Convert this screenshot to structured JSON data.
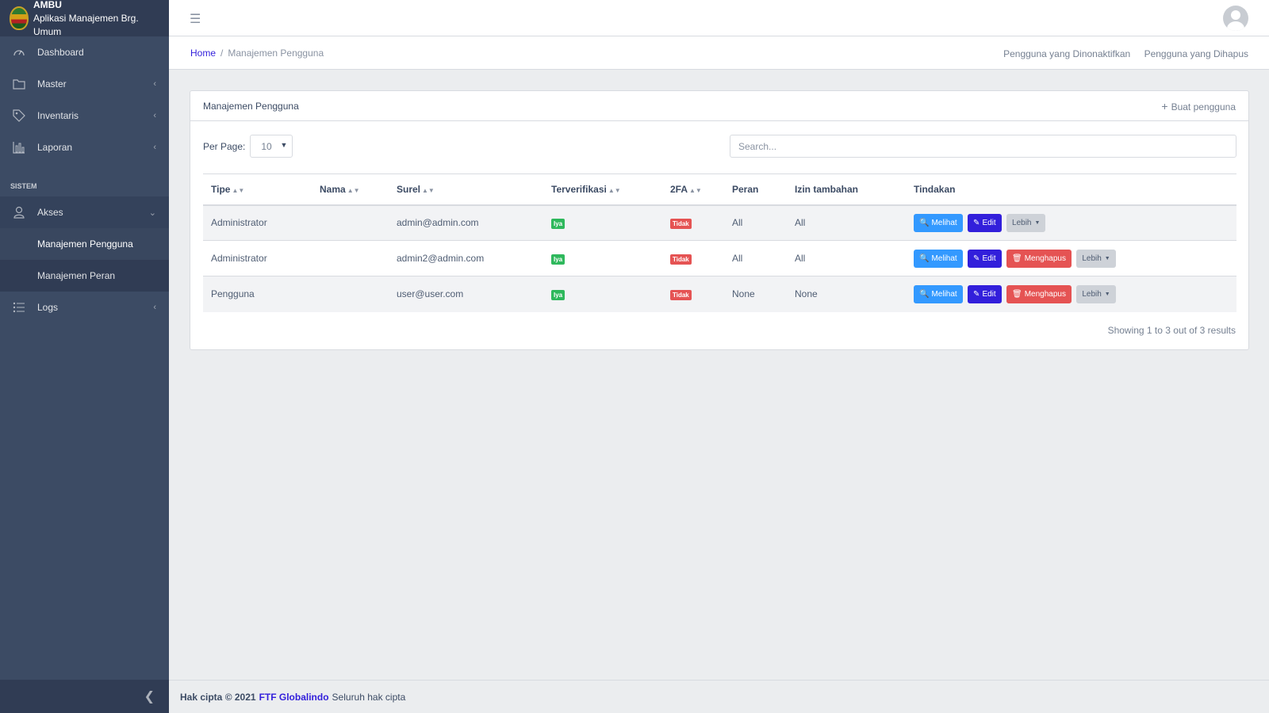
{
  "brand": {
    "title": "AMBU",
    "subtitle": "Aplikasi Manajemen Brg. Umum"
  },
  "sidebar": {
    "items": [
      {
        "label": "Dashboard"
      },
      {
        "label": "Master"
      },
      {
        "label": "Inventaris"
      },
      {
        "label": "Laporan"
      }
    ],
    "section_title": "SISTEM",
    "akses": {
      "label": "Akses"
    },
    "akses_sub": [
      {
        "label": "Manajemen Pengguna"
      },
      {
        "label": "Manajemen Peran"
      }
    ],
    "logs": {
      "label": "Logs"
    }
  },
  "breadcrumb": {
    "home": "Home",
    "current": "Manajemen Pengguna"
  },
  "subnav": {
    "deactivated": "Pengguna yang Dinonaktifkan",
    "deleted": "Pengguna yang Dihapus"
  },
  "card": {
    "title": "Manajemen Pengguna",
    "create_label": "Buat pengguna"
  },
  "controls": {
    "per_page_label": "Per Page:",
    "per_page_value": "10",
    "search_placeholder": "Search..."
  },
  "table": {
    "headers": [
      "Tipe",
      "Nama",
      "Surel",
      "Terverifikasi",
      "2FA",
      "Peran",
      "Izin tambahan",
      "Tindakan"
    ],
    "rows": [
      {
        "tipe": "Administrator",
        "nama": "",
        "surel": "admin@admin.com",
        "verified": "Iya",
        "twofa": "Tidak",
        "peran": "All",
        "izin": "All"
      },
      {
        "tipe": "Administrator",
        "nama": "",
        "surel": "admin2@admin.com",
        "verified": "Iya",
        "twofa": "Tidak",
        "peran": "All",
        "izin": "All"
      },
      {
        "tipe": "Pengguna",
        "nama": "",
        "surel": "user@user.com",
        "verified": "Iya",
        "twofa": "Tidak",
        "peran": "None",
        "izin": "None"
      }
    ],
    "actions": {
      "view": "Melihat",
      "edit": "Edit",
      "delete": "Menghapus",
      "more": "Lebih"
    }
  },
  "results_text": "Showing 1 to 3 out of 3 results",
  "footer": {
    "copyright": "Hak cipta © 2021",
    "company": "FTF Globalindo",
    "rights": "Seluruh hak cipta"
  },
  "colors": {
    "sidebar": "#3c4b64",
    "primary": "#321fdb",
    "info": "#3399ff",
    "danger": "#e55353",
    "success": "#2eb85c"
  }
}
